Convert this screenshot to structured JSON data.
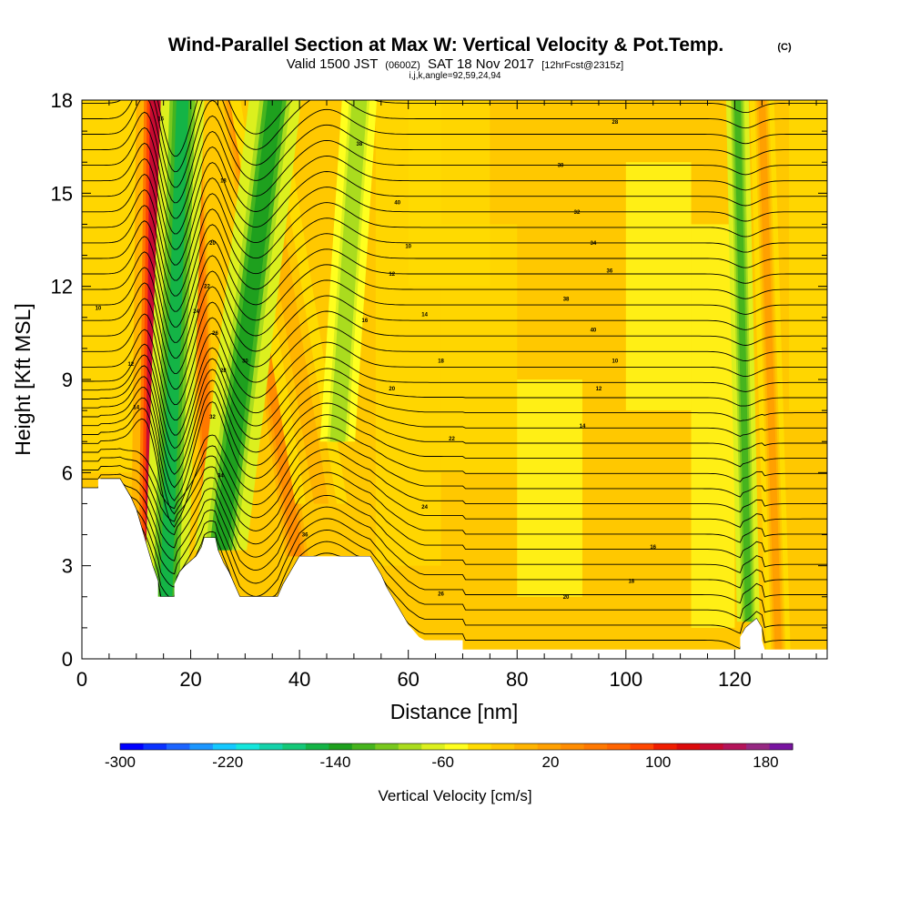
{
  "header": {
    "title": "Wind-Parallel Section at Max W: Vertical Velocity & Pot.Temp.",
    "title_mark": "(C)",
    "valid_main": "Valid 1500 JST",
    "valid_utc": "(0600Z)",
    "valid_date": "SAT 18 Nov 2017",
    "fcst": "[12hrFcst@2315z]",
    "ijk": "i,j,k,angle=92,59,24,94"
  },
  "chart_data": {
    "type": "heatmap",
    "xlabel": "Distance [nm]",
    "ylabel": "Height [Kft MSL]",
    "xlim": [
      0,
      137
    ],
    "ylim": [
      0,
      18
    ],
    "x_ticks": [
      0,
      20,
      40,
      60,
      80,
      100,
      120
    ],
    "y_ticks": [
      0,
      3,
      6,
      9,
      12,
      15,
      18
    ],
    "x_tick_labels": [
      "0",
      "20",
      "40",
      "60",
      "80",
      "100",
      "120"
    ],
    "y_tick_labels": [
      "0",
      "3",
      "6",
      "9",
      "12",
      "15",
      "18"
    ],
    "terrain_height": [
      [
        0,
        5.5
      ],
      [
        3,
        5.5
      ],
      [
        3,
        5.8
      ],
      [
        7,
        5.8
      ],
      [
        8,
        5.5
      ],
      [
        9,
        5.2
      ],
      [
        10,
        4.8
      ],
      [
        11,
        4.2
      ],
      [
        12,
        3.6
      ],
      [
        13,
        3.0
      ],
      [
        14,
        2.5
      ],
      [
        14,
        2.0
      ],
      [
        17,
        2.0
      ],
      [
        17,
        2.4
      ],
      [
        18,
        2.8
      ],
      [
        19,
        3.0
      ],
      [
        21,
        3.3
      ],
      [
        22,
        3.6
      ],
      [
        22.5,
        3.9
      ],
      [
        24.5,
        3.9
      ],
      [
        25,
        3.5
      ],
      [
        26,
        3.1
      ],
      [
        27,
        2.8
      ],
      [
        28,
        2.4
      ],
      [
        29,
        2.0
      ],
      [
        36,
        2.0
      ],
      [
        37,
        2.4
      ],
      [
        38,
        2.7
      ],
      [
        39,
        3.0
      ],
      [
        40,
        3.3
      ],
      [
        53,
        3.3
      ],
      [
        54,
        3.0
      ],
      [
        55,
        2.7
      ],
      [
        56,
        2.3
      ],
      [
        57,
        2.0
      ],
      [
        58,
        1.7
      ],
      [
        59,
        1.4
      ],
      [
        60,
        1.1
      ],
      [
        61,
        0.9
      ],
      [
        62,
        0.7
      ],
      [
        63,
        0.6
      ],
      [
        70,
        0.6
      ],
      [
        70,
        0.3
      ],
      [
        121,
        0.3
      ],
      [
        121,
        0.7
      ],
      [
        122,
        1.0
      ],
      [
        124,
        1.3
      ],
      [
        125,
        1.0
      ],
      [
        125,
        0.6
      ],
      [
        125.5,
        0.3
      ],
      [
        137,
        0.3
      ],
      [
        137,
        0
      ]
    ],
    "colorbar": {
      "title": "Vertical Velocity [cm/s]",
      "min": -300,
      "max": 200,
      "step": 20,
      "tick_values": [
        -300,
        -220,
        -140,
        -60,
        20,
        100,
        180
      ],
      "tick_labels": [
        "-300",
        "-220",
        "-140",
        "-60",
        "20",
        "100",
        "180"
      ],
      "colors": [
        "#0000ff",
        "#0a32ff",
        "#1c64ff",
        "#1c96ff",
        "#14c8ff",
        "#14e6dc",
        "#14d2aa",
        "#14c878",
        "#14b446",
        "#1ea01e",
        "#46b41e",
        "#78c81e",
        "#aadc1e",
        "#dcf01e",
        "#ffff1e",
        "#ffdc00",
        "#ffc800",
        "#ffb400",
        "#ffa000",
        "#ff8c00",
        "#ff7800",
        "#ff6400",
        "#ff4600",
        "#f01e00",
        "#dc0a0a",
        "#c80a32",
        "#b4145a",
        "#962882",
        "#7814a0"
      ]
    },
    "updraft_bands": [
      {
        "x_bottom": 12.5,
        "x_top": 13.5,
        "w": 200,
        "width_nm": 2.2,
        "y_start": 2.0
      },
      {
        "x_bottom": 23.5,
        "x_top": 20.5,
        "w": 110,
        "width_nm": 1.6,
        "y_start": 3.9
      },
      {
        "x_bottom": 39.5,
        "x_top": 28.0,
        "w": 90,
        "width_nm": 2.2,
        "y_start": 3.3
      },
      {
        "x_bottom": 44.0,
        "x_top": 32.0,
        "w": 50,
        "width_nm": 3.0,
        "y_start": 5.0
      },
      {
        "x_bottom": 128.0,
        "x_top": 125.0,
        "w": 60,
        "width_nm": 1.4,
        "y_start": 0.3
      }
    ],
    "downdraft_bands": [
      {
        "x_bottom": 15.5,
        "x_top": 18.5,
        "w": -130,
        "width_nm": 2.5,
        "y_start": 2.0
      },
      {
        "x_bottom": 25.5,
        "x_top": 35.5,
        "w": -110,
        "width_nm": 3.0,
        "y_start": 3.5
      },
      {
        "x_bottom": 47.0,
        "x_top": 51.0,
        "w": -60,
        "width_nm": 2.0,
        "y_start": 7.0
      },
      {
        "x_bottom": 122.5,
        "x_top": 120.5,
        "w": -90,
        "width_nm": 1.3,
        "y_start": 1.2
      }
    ],
    "isentropes_theta": [
      10,
      12,
      14,
      16,
      18,
      20,
      22,
      24,
      26,
      28,
      30,
      32,
      34,
      36,
      38,
      40
    ],
    "isentrope_label_values": [
      "10",
      "12",
      "14",
      "16",
      "18",
      "20",
      "22",
      "24",
      "26",
      "28",
      "30",
      "32",
      "34",
      "36",
      "38",
      "40"
    ]
  }
}
